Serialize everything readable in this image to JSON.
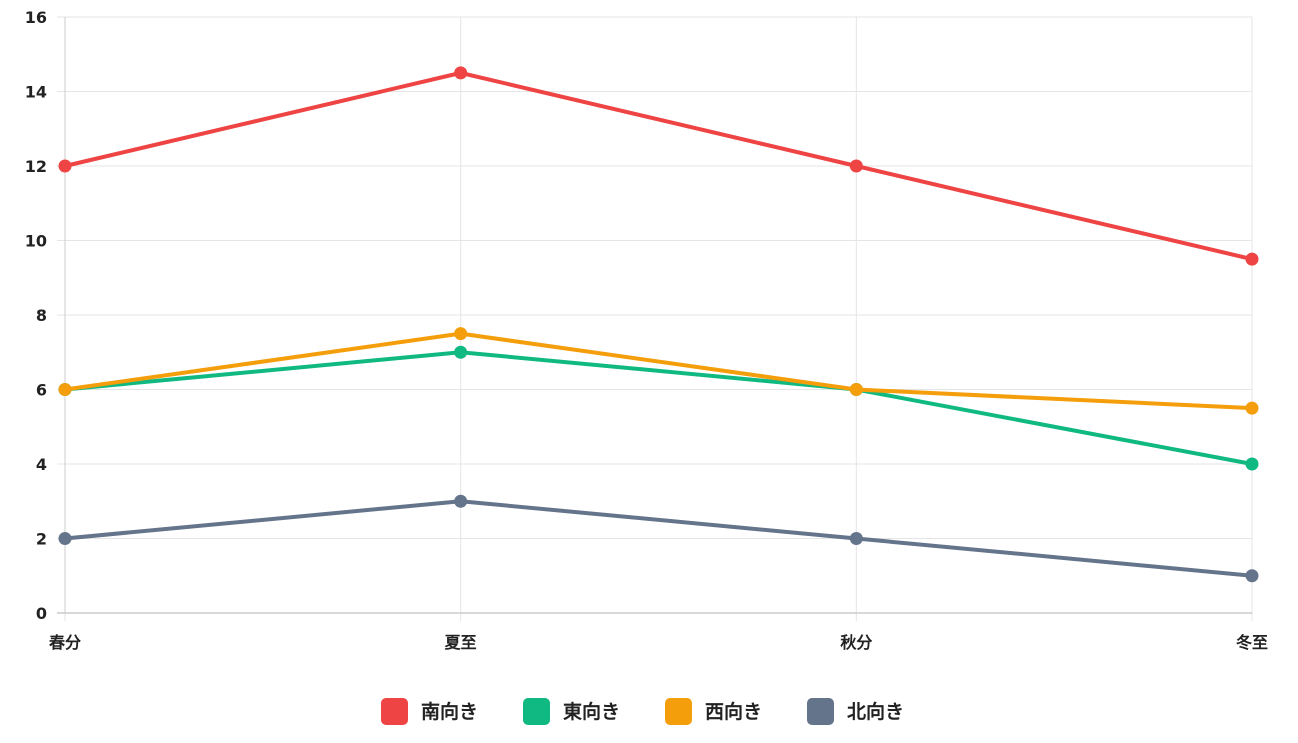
{
  "chart_data": {
    "type": "line",
    "categories": [
      "春分",
      "夏至",
      "秋分",
      "冬至"
    ],
    "ylim": [
      0,
      16
    ],
    "yticks": [
      0,
      2,
      4,
      6,
      8,
      10,
      12,
      14,
      16
    ],
    "grid": true,
    "legend_position": "bottom",
    "series": [
      {
        "name": "南向き",
        "color": "#ef4444",
        "values": [
          12,
          14.5,
          12,
          9.5
        ]
      },
      {
        "name": "東向き",
        "color": "#10b981",
        "values": [
          6,
          7,
          6,
          4
        ]
      },
      {
        "name": "西向き",
        "color": "#f59e0b",
        "values": [
          6,
          7.5,
          6,
          5.5
        ]
      },
      {
        "name": "北向き",
        "color": "#64748b",
        "values": [
          2,
          3,
          2,
          1
        ]
      }
    ]
  }
}
